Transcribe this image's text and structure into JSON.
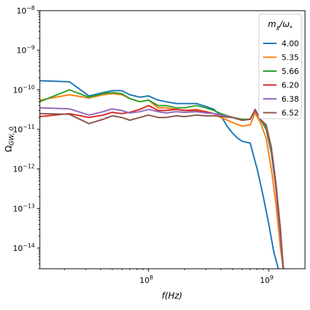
{
  "chart_data": {
    "type": "line",
    "x_scale": "log",
    "y_scale": "log",
    "xlabel": "f(Hz)",
    "ylabel": "ΩGW, 0",
    "xlim": [
      12500000.0,
      2000000000.0
    ],
    "ylim": [
      3e-15,
      1e-08
    ],
    "x_ticks": [
      {
        "value": 100000000.0,
        "label": "10",
        "exp": "8"
      },
      {
        "value": 1000000000.0,
        "label": "10",
        "exp": "9"
      }
    ],
    "y_ticks": [
      {
        "value": 1e-08,
        "label": "10",
        "exp": "−8"
      },
      {
        "value": 1e-09,
        "label": "10",
        "exp": "−9"
      },
      {
        "value": 1e-10,
        "label": "10",
        "exp": "−10"
      },
      {
        "value": 1e-11,
        "label": "10",
        "exp": "−11"
      },
      {
        "value": 1e-12,
        "label": "10",
        "exp": "−12"
      },
      {
        "value": 1e-13,
        "label": "10",
        "exp": "−13"
      },
      {
        "value": 1e-14,
        "label": "10",
        "exp": "−14"
      }
    ],
    "grid": false,
    "legend": {
      "position": "top-right",
      "title": "mχ/ω*",
      "title_main": "m",
      "title_sub": "χ",
      "title_rest": "/ω",
      "title_sup": "*"
    },
    "series": [
      {
        "name": "4.00",
        "color": "#1f77b4",
        "points": [
          [
            12500000.0,
            1.7e-10
          ],
          [
            22000000.0,
            1.6e-10
          ],
          [
            32000000.0,
            7e-11
          ],
          [
            42000000.0,
            8.5e-11
          ],
          [
            50000000.0,
            9.5e-11
          ],
          [
            60000000.0,
            9.5e-11
          ],
          [
            70000000.0,
            7.5e-11
          ],
          [
            85000000.0,
            6.5e-11
          ],
          [
            100000000.0,
            7e-11
          ],
          [
            120000000.0,
            5.5e-11
          ],
          [
            140000000.0,
            5e-11
          ],
          [
            170000000.0,
            4.5e-11
          ],
          [
            200000000.0,
            4.5e-11
          ],
          [
            250000000.0,
            4.5e-11
          ],
          [
            300000000.0,
            3.8e-11
          ],
          [
            350000000.0,
            3.2e-11
          ],
          [
            400000000.0,
            2.2e-11
          ],
          [
            450000000.0,
            1.2e-11
          ],
          [
            500000000.0,
            8e-12
          ],
          [
            550000000.0,
            6e-12
          ],
          [
            600000000.0,
            5e-12
          ],
          [
            700000000.0,
            4.5e-12
          ],
          [
            800000000.0,
            1e-12
          ],
          [
            900000000.0,
            2e-13
          ],
          [
            1000000000.0,
            4e-14
          ],
          [
            1100000000.0,
            8e-15
          ],
          [
            1200000000.0,
            3e-15
          ]
        ]
      },
      {
        "name": "5.35",
        "color": "#ff7f0e",
        "points": [
          [
            12500000.0,
            5.5e-11
          ],
          [
            22000000.0,
            7.5e-11
          ],
          [
            32000000.0,
            6.2e-11
          ],
          [
            42000000.0,
            7.5e-11
          ],
          [
            50000000.0,
            8e-11
          ],
          [
            60000000.0,
            7.5e-11
          ],
          [
            70000000.0,
            6e-11
          ],
          [
            85000000.0,
            5e-11
          ],
          [
            100000000.0,
            5.5e-11
          ],
          [
            120000000.0,
            3.5e-11
          ],
          [
            140000000.0,
            3.5e-11
          ],
          [
            170000000.0,
            3.2e-11
          ],
          [
            200000000.0,
            3e-11
          ],
          [
            250000000.0,
            3.2e-11
          ],
          [
            300000000.0,
            2.8e-11
          ],
          [
            350000000.0,
            2.5e-11
          ],
          [
            400000000.0,
            2e-11
          ],
          [
            500000000.0,
            1.5e-11
          ],
          [
            600000000.0,
            1.2e-11
          ],
          [
            700000000.0,
            1.3e-11
          ],
          [
            770000000.0,
            2.6e-11
          ],
          [
            850000000.0,
            1.5e-11
          ],
          [
            950000000.0,
            6e-12
          ],
          [
            1050000000.0,
            1e-12
          ],
          [
            1150000000.0,
            1.2e-13
          ],
          [
            1250000000.0,
            1e-14
          ],
          [
            1320000000.0,
            3e-15
          ]
        ]
      },
      {
        "name": "5.66",
        "color": "#2ca02c",
        "points": [
          [
            12500000.0,
            5e-11
          ],
          [
            22000000.0,
            1e-10
          ],
          [
            32000000.0,
            6.5e-11
          ],
          [
            42000000.0,
            8e-11
          ],
          [
            50000000.0,
            8.5e-11
          ],
          [
            60000000.0,
            8e-11
          ],
          [
            70000000.0,
            6e-11
          ],
          [
            85000000.0,
            5e-11
          ],
          [
            100000000.0,
            5.5e-11
          ],
          [
            120000000.0,
            4e-11
          ],
          [
            140000000.0,
            4e-11
          ],
          [
            170000000.0,
            3.5e-11
          ],
          [
            200000000.0,
            3.5e-11
          ],
          [
            250000000.0,
            4e-11
          ],
          [
            300000000.0,
            3.5e-11
          ],
          [
            350000000.0,
            3e-11
          ],
          [
            400000000.0,
            2.5e-11
          ],
          [
            500000000.0,
            2e-11
          ],
          [
            600000000.0,
            1.8e-11
          ],
          [
            700000000.0,
            1.8e-11
          ],
          [
            770000000.0,
            3e-11
          ],
          [
            850000000.0,
            1.8e-11
          ],
          [
            950000000.0,
            1e-11
          ],
          [
            1050000000.0,
            2.5e-12
          ],
          [
            1150000000.0,
            3e-13
          ],
          [
            1250000000.0,
            2e-14
          ],
          [
            1320000000.0,
            3e-15
          ]
        ]
      },
      {
        "name": "6.20",
        "color": "#d62728",
        "points": [
          [
            12500000.0,
            2.1e-11
          ],
          [
            22000000.0,
            2.5e-11
          ],
          [
            32000000.0,
            2e-11
          ],
          [
            42000000.0,
            2.3e-11
          ],
          [
            50000000.0,
            2.7e-11
          ],
          [
            60000000.0,
            2.5e-11
          ],
          [
            70000000.0,
            2.7e-11
          ],
          [
            85000000.0,
            3.2e-11
          ],
          [
            100000000.0,
            4e-11
          ],
          [
            120000000.0,
            3e-11
          ],
          [
            140000000.0,
            3e-11
          ],
          [
            170000000.0,
            3.2e-11
          ],
          [
            200000000.0,
            3e-11
          ],
          [
            250000000.0,
            3e-11
          ],
          [
            300000000.0,
            2.8e-11
          ],
          [
            350000000.0,
            2.5e-11
          ],
          [
            400000000.0,
            2.3e-11
          ],
          [
            500000000.0,
            2e-11
          ],
          [
            600000000.0,
            1.7e-11
          ],
          [
            700000000.0,
            1.8e-11
          ],
          [
            770000000.0,
            3e-11
          ],
          [
            850000000.0,
            1.8e-11
          ],
          [
            950000000.0,
            1.2e-11
          ],
          [
            1050000000.0,
            3e-12
          ],
          [
            1150000000.0,
            3e-13
          ],
          [
            1250000000.0,
            2e-14
          ],
          [
            1320000000.0,
            3e-15
          ]
        ]
      },
      {
        "name": "6.38",
        "color": "#9467bd",
        "points": [
          [
            12500000.0,
            3.5e-11
          ],
          [
            22000000.0,
            3.3e-11
          ],
          [
            32000000.0,
            2.3e-11
          ],
          [
            42000000.0,
            2.8e-11
          ],
          [
            50000000.0,
            3.3e-11
          ],
          [
            60000000.0,
            3e-11
          ],
          [
            70000000.0,
            2.6e-11
          ],
          [
            85000000.0,
            2.8e-11
          ],
          [
            100000000.0,
            3.2e-11
          ],
          [
            120000000.0,
            2.8e-11
          ],
          [
            140000000.0,
            2.6e-11
          ],
          [
            170000000.0,
            2.8e-11
          ],
          [
            200000000.0,
            2.7e-11
          ],
          [
            250000000.0,
            2.8e-11
          ],
          [
            300000000.0,
            2.6e-11
          ],
          [
            350000000.0,
            2.5e-11
          ],
          [
            400000000.0,
            2.3e-11
          ],
          [
            500000000.0,
            2e-11
          ],
          [
            600000000.0,
            1.7e-11
          ],
          [
            700000000.0,
            1.8e-11
          ],
          [
            770000000.0,
            3e-11
          ],
          [
            850000000.0,
            1.8e-11
          ],
          [
            950000000.0,
            1.2e-11
          ],
          [
            1050000000.0,
            3e-12
          ],
          [
            1150000000.0,
            3e-13
          ],
          [
            1250000000.0,
            2e-14
          ],
          [
            1320000000.0,
            3e-15
          ]
        ]
      },
      {
        "name": "6.52",
        "color": "#8c564b",
        "points": [
          [
            12500000.0,
            2.5e-11
          ],
          [
            22000000.0,
            2.4e-11
          ],
          [
            32000000.0,
            1.4e-11
          ],
          [
            42000000.0,
            1.8e-11
          ],
          [
            50000000.0,
            2.2e-11
          ],
          [
            60000000.0,
            2e-11
          ],
          [
            70000000.0,
            1.7e-11
          ],
          [
            85000000.0,
            2e-11
          ],
          [
            100000000.0,
            2.3e-11
          ],
          [
            120000000.0,
            2e-11
          ],
          [
            140000000.0,
            2e-11
          ],
          [
            170000000.0,
            2.2e-11
          ],
          [
            200000000.0,
            2.1e-11
          ],
          [
            250000000.0,
            2.3e-11
          ],
          [
            300000000.0,
            2.2e-11
          ],
          [
            350000000.0,
            2.2e-11
          ],
          [
            400000000.0,
            2.1e-11
          ],
          [
            500000000.0,
            2e-11
          ],
          [
            600000000.0,
            1.7e-11
          ],
          [
            700000000.0,
            1.8e-11
          ],
          [
            770000000.0,
            3.2e-11
          ],
          [
            850000000.0,
            1.8e-11
          ],
          [
            950000000.0,
            1.3e-11
          ],
          [
            1050000000.0,
            3.5e-12
          ],
          [
            1150000000.0,
            4e-13
          ],
          [
            1250000000.0,
            3e-14
          ],
          [
            1320000000.0,
            3e-15
          ]
        ]
      }
    ]
  }
}
